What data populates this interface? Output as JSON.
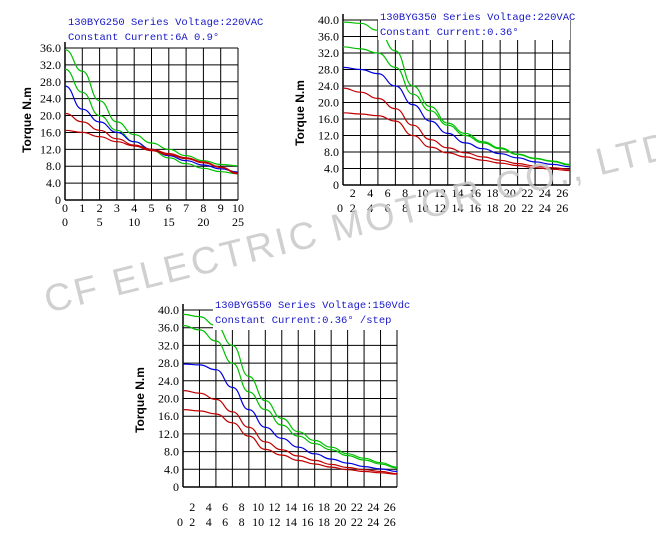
{
  "watermark": "CF ELECTRIC MOTOR CO., LTD",
  "chart_data": [
    {
      "type": "line",
      "title": "130BYG250 Series Voltage:220VAC",
      "subtitle": "Constant Current:6A 0.9°",
      "ylabel": "Torque N.m",
      "ylim": [
        0,
        36
      ],
      "yticks": [
        "0",
        "4.0",
        "8.0",
        "12.0",
        "16.0",
        "20.0",
        "24.0",
        "28.0",
        "32.0",
        "36.0"
      ],
      "xlim": [
        0,
        10
      ],
      "xticks_top": [
        "0",
        "1",
        "2",
        "3",
        "4",
        "5",
        "6",
        "7",
        "8",
        "9",
        "10"
      ],
      "xticks_bottom": [
        "0",
        "5",
        "10",
        "15",
        "20",
        "25"
      ],
      "grid": true,
      "series": [
        {
          "color": "#00c000",
          "x": [
            0,
            1,
            2,
            3,
            4,
            5,
            6,
            7,
            8,
            9,
            10
          ],
          "y": [
            35.6,
            30.5,
            23.5,
            18.5,
            15.5,
            13.5,
            12,
            10.5,
            9.3,
            8.4,
            8.1
          ]
        },
        {
          "color": "#00c000",
          "x": [
            0,
            1,
            2,
            3,
            4,
            5,
            6,
            7,
            8,
            9,
            10
          ],
          "y": [
            31,
            25.5,
            20,
            16.5,
            13.8,
            11.8,
            10,
            8.6,
            7.5,
            6.7,
            6.2
          ]
        },
        {
          "color": "#0000e0",
          "x": [
            0,
            1,
            2,
            3,
            4,
            5,
            6,
            7,
            8,
            9,
            10
          ],
          "y": [
            27,
            21.5,
            18.5,
            16,
            13.8,
            12,
            10.5,
            9.3,
            8.3,
            7.4,
            6.6
          ]
        },
        {
          "color": "#c00000",
          "x": [
            0,
            1,
            2,
            3,
            4,
            5,
            6,
            7,
            8,
            9,
            10
          ],
          "y": [
            20.5,
            18.5,
            16.5,
            14.5,
            13,
            12,
            11,
            10,
            9,
            7.8,
            6.4
          ]
        },
        {
          "color": "#c00000",
          "x": [
            0,
            1,
            2,
            3,
            4,
            5,
            6,
            7,
            8,
            9,
            10
          ],
          "y": [
            16.5,
            16,
            15,
            13.8,
            12.8,
            11.7,
            10.7,
            9.8,
            8.8,
            7.7,
            6.2
          ]
        }
      ]
    },
    {
      "type": "line",
      "title": "130BYG350 Series Voltage:220VAC",
      "subtitle": "Constant Current:0.36°",
      "ylabel": "Torque N.m",
      "ylim": [
        0,
        40
      ],
      "yticks": [
        "0",
        "4.0",
        "8.0",
        "12.0",
        "16.0",
        "20.0",
        "24.0",
        "28.0",
        "32.0",
        "36.0",
        "40.0"
      ],
      "xlim": [
        0,
        26
      ],
      "xticks_top": [
        "2",
        "4",
        "6",
        "8",
        "10",
        "12",
        "14",
        "16",
        "18",
        "20",
        "22",
        "24",
        "26"
      ],
      "xticks_bottom": [
        "0",
        "2",
        "4",
        "6",
        "8",
        "10",
        "12",
        "14",
        "16",
        "18",
        "20",
        "22",
        "24",
        "26"
      ],
      "grid": true,
      "series": [
        {
          "color": "#00c000",
          "x": [
            0,
            2,
            4,
            6,
            8,
            10,
            12,
            14,
            16,
            18,
            20,
            22,
            24,
            26
          ],
          "y": [
            39.5,
            39.2,
            37.5,
            32.5,
            24,
            19,
            15,
            12.5,
            10.5,
            9,
            7.5,
            6.5,
            5.8,
            5
          ]
        },
        {
          "color": "#00c000",
          "x": [
            0,
            2,
            4,
            6,
            8,
            10,
            12,
            14,
            16,
            18,
            20,
            22,
            24,
            26
          ],
          "y": [
            33.5,
            33,
            32,
            28.5,
            22,
            18,
            14.5,
            12,
            10.2,
            8.8,
            7.4,
            6.4,
            5.7,
            4.8
          ]
        },
        {
          "color": "#0000e0",
          "x": [
            0,
            2,
            4,
            6,
            8,
            10,
            12,
            14,
            16,
            18,
            20,
            22,
            24,
            26
          ],
          "y": [
            28.5,
            28,
            27,
            24,
            19.5,
            15.5,
            12.5,
            10.2,
            8.8,
            7.6,
            6.6,
            5.6,
            5,
            4.4
          ]
        },
        {
          "color": "#c00000",
          "x": [
            0,
            2,
            4,
            6,
            8,
            10,
            12,
            14,
            16,
            18,
            20,
            22,
            24,
            26
          ],
          "y": [
            23.5,
            22.5,
            21,
            18.5,
            14.5,
            11,
            9,
            7.8,
            6.8,
            6,
            5.2,
            4.6,
            4.2,
            3.8
          ]
        },
        {
          "color": "#c00000",
          "x": [
            0,
            2,
            4,
            6,
            8,
            10,
            12,
            14,
            16,
            18,
            20,
            22,
            24,
            26
          ],
          "y": [
            17.5,
            17.2,
            16.8,
            15.5,
            12,
            9.2,
            7.8,
            6.8,
            6,
            5.3,
            4.7,
            4.2,
            3.8,
            3.5
          ]
        }
      ]
    },
    {
      "type": "line",
      "title": "130BYG550 Series Voltage:150Vdc",
      "subtitle": "Constant Current:0.36° /step",
      "ylabel": "Torque N.m",
      "ylim": [
        0,
        40
      ],
      "yticks": [
        "0",
        "4.0",
        "8.0",
        "12.0",
        "16.0",
        "20.0",
        "24.0",
        "28.0",
        "32.0",
        "36.0",
        "40.0"
      ],
      "xlim": [
        0,
        26
      ],
      "xticks_top": [
        "2",
        "4",
        "6",
        "8",
        "10",
        "12",
        "14",
        "16",
        "18",
        "20",
        "22",
        "24",
        "26"
      ],
      "xticks_bottom": [
        "0",
        "2",
        "4",
        "6",
        "8",
        "10",
        "12",
        "14",
        "16",
        "18",
        "20",
        "22",
        "24",
        "26"
      ],
      "grid": true,
      "series": [
        {
          "color": "#00c000",
          "x": [
            0,
            2,
            4,
            6,
            8,
            10,
            12,
            14,
            16,
            18,
            20,
            22,
            24,
            26
          ],
          "y": [
            39,
            38.5,
            36.5,
            32,
            25,
            19.5,
            15.5,
            12.5,
            10.5,
            9,
            7.5,
            6.5,
            5.5,
            4.5
          ]
        },
        {
          "color": "#00c000",
          "x": [
            0,
            2,
            4,
            6,
            8,
            10,
            12,
            14,
            16,
            18,
            20,
            22,
            24,
            26
          ],
          "y": [
            36.5,
            35.5,
            33,
            28,
            21.5,
            17.5,
            14,
            11.5,
            9.8,
            8.4,
            7.1,
            6.1,
            5.2,
            4.3
          ]
        },
        {
          "color": "#0000e0",
          "x": [
            0,
            2,
            4,
            6,
            8,
            10,
            12,
            14,
            16,
            18,
            20,
            22,
            24,
            26
          ],
          "y": [
            27.8,
            27.6,
            26.5,
            22.5,
            17.5,
            13.5,
            11,
            9,
            7.5,
            6.3,
            5.4,
            4.6,
            4.1,
            3.5
          ]
        },
        {
          "color": "#c00000",
          "x": [
            0,
            2,
            4,
            6,
            8,
            10,
            12,
            14,
            16,
            18,
            20,
            22,
            24,
            26
          ],
          "y": [
            21.8,
            21.2,
            19.8,
            17,
            13.5,
            10.2,
            8.4,
            7,
            6,
            5.1,
            4.4,
            3.9,
            3.5,
            3
          ]
        },
        {
          "color": "#c00000",
          "x": [
            0,
            2,
            4,
            6,
            8,
            10,
            12,
            14,
            16,
            18,
            20,
            22,
            24,
            26
          ],
          "y": [
            17.5,
            17.2,
            16.5,
            14.5,
            11.5,
            8.5,
            7.2,
            6,
            5.2,
            4.5,
            3.9,
            3.5,
            3.2,
            2.9
          ]
        }
      ]
    }
  ]
}
